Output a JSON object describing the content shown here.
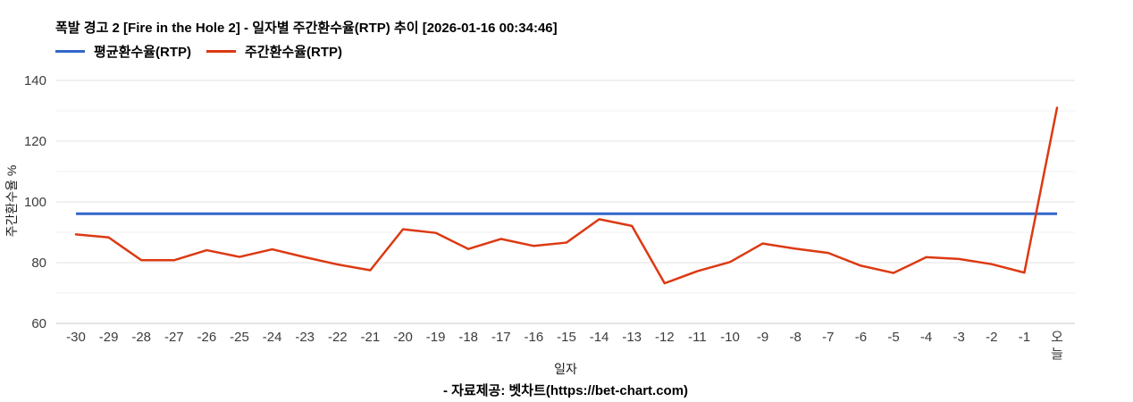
{
  "page": {
    "footer": "- 자료제공: 벳차트(https://bet-chart.com)"
  },
  "legend": {
    "items": [
      {
        "id": "legend-average-rtp",
        "label": "평균환수율(RTP)",
        "color": "#3366cc"
      },
      {
        "id": "legend-weekly-rtp",
        "label": "주간환수율(RTP)",
        "color": "#dc3912"
      }
    ]
  },
  "chart_data": {
    "type": "line",
    "title": "폭발 경고 2 [Fire in the Hole 2] - 일자별 주간환수율(RTP) 추이 [2026-01-16 00:34:46]",
    "xlabel": "일자",
    "ylabel": "주간환수율 %",
    "categories": [
      "-30",
      "-29",
      "-28",
      "-27",
      "-26",
      "-25",
      "-24",
      "-23",
      "-22",
      "-21",
      "-20",
      "-19",
      "-18",
      "-17",
      "-16",
      "-15",
      "-14",
      "-13",
      "-12",
      "-11",
      "-10",
      "-9",
      "-8",
      "-7",
      "-6",
      "-5",
      "-4",
      "-3",
      "-2",
      "-1",
      "오늘"
    ],
    "series": [
      {
        "id": "average-rtp-line",
        "name": "평균환수율(RTP)",
        "color": "#3366cc",
        "constant": true,
        "value": 96.1
      },
      {
        "id": "weekly-rtp-line",
        "name": "주간환수율(RTP)",
        "color": "#dc3912",
        "values": [
          89.3,
          88.3,
          80.8,
          80.8,
          84.1,
          81.9,
          84.4,
          81.8,
          79.4,
          77.5,
          91.0,
          89.8,
          84.5,
          87.8,
          85.5,
          86.6,
          94.3,
          92.1,
          73.2,
          77.2,
          80.2,
          86.3,
          84.6,
          83.2,
          79.0,
          76.6,
          81.8,
          81.2,
          79.5,
          76.7,
          131.0
        ]
      }
    ],
    "ylim": [
      60,
      140
    ],
    "y_ticks": [
      60,
      80,
      100,
      120,
      140
    ],
    "y_minor_ticks": [
      70,
      90,
      110,
      130
    ],
    "grid": true,
    "legend_position": "top",
    "colors": {
      "major_gridline": "#e2e2e2",
      "minor_gridline": "#f0f0f0",
      "axis_baseline": "#c7c7c7",
      "tick_label": "#3c3c3c"
    }
  }
}
